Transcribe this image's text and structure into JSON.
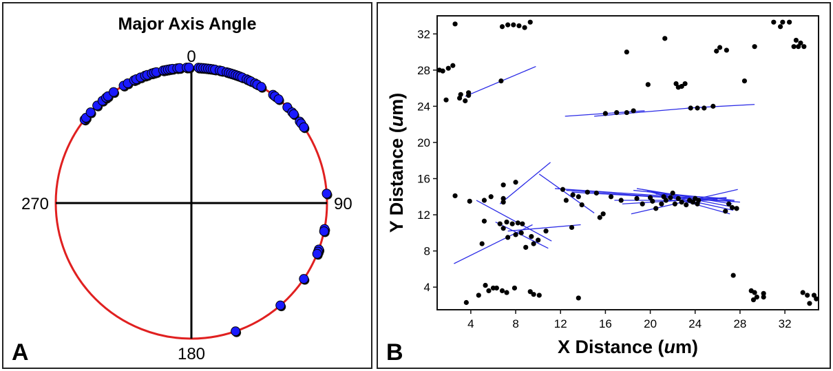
{
  "chart_data": [
    {
      "type": "scatter",
      "subtype": "polar-circle",
      "panel_label": "A",
      "title": "Major Axis Angle",
      "angle_labels": [
        "0",
        "90",
        "180",
        "270"
      ],
      "angles_deg": [
        -52,
        -51,
        -48,
        -44,
        -41,
        -39,
        -38,
        -35,
        -30,
        -28,
        -25,
        -24,
        -22,
        -20,
        -19,
        -17,
        -16,
        -15,
        -12,
        -11,
        -10,
        -9,
        -8,
        -6,
        -5,
        -2,
        -1,
        3,
        4,
        5,
        6,
        7,
        8,
        9,
        10,
        12,
        13,
        15,
        16,
        17,
        18,
        19,
        20,
        21,
        22,
        24,
        25,
        26,
        28,
        29,
        31,
        37,
        38,
        40,
        45,
        48,
        49,
        53,
        54,
        56,
        86,
        101,
        102,
        110,
        111,
        112,
        124,
        139,
        161
      ],
      "colors": {
        "circle": "#e02020",
        "points": "#1a1aff",
        "axes": "#000000"
      }
    },
    {
      "type": "scatter",
      "panel_label": "B",
      "xlabel": "X Distance (um)",
      "ylabel": "Y Distance (um)",
      "xlabel_parts": [
        "X Distance (",
        "u",
        "m)"
      ],
      "ylabel_parts": [
        "Y Distance (",
        "u",
        "m)"
      ],
      "xlim": [
        1,
        35
      ],
      "ylim": [
        1.5,
        34
      ],
      "xticks": [
        4,
        8,
        12,
        16,
        20,
        24,
        28,
        32
      ],
      "yticks": [
        4,
        8,
        12,
        16,
        20,
        24,
        28,
        32
      ],
      "points": [
        [
          1.2,
          28
        ],
        [
          1.5,
          27.9
        ],
        [
          2,
          28.2
        ],
        [
          2.4,
          28.5
        ],
        [
          2.6,
          33.1
        ],
        [
          1.8,
          24.7
        ],
        [
          3.1,
          25.3
        ],
        [
          3,
          24.9
        ],
        [
          3.5,
          24.6
        ],
        [
          3.8,
          25.2
        ],
        [
          3.8,
          25.5
        ],
        [
          6.7,
          26.8
        ],
        [
          6.8,
          32.8
        ],
        [
          7.3,
          33
        ],
        [
          7.8,
          33
        ],
        [
          8.3,
          32.9
        ],
        [
          8.8,
          32.7
        ],
        [
          9.3,
          33.3
        ],
        [
          17.9,
          30
        ],
        [
          21.3,
          31.5
        ],
        [
          19.8,
          26.4
        ],
        [
          22.3,
          26.5
        ],
        [
          22.5,
          26.1
        ],
        [
          22.8,
          26.2
        ],
        [
          23.1,
          26.5
        ],
        [
          25.9,
          30.1
        ],
        [
          26.2,
          30.5
        ],
        [
          26.8,
          30.2
        ],
        [
          28.4,
          26.8
        ],
        [
          29.3,
          30.6
        ],
        [
          31,
          33.3
        ],
        [
          31.6,
          32.8
        ],
        [
          31.8,
          33.3
        ],
        [
          32.4,
          33.3
        ],
        [
          32.8,
          30.6
        ],
        [
          33,
          31.3
        ],
        [
          33.2,
          30.6
        ],
        [
          33.4,
          31
        ],
        [
          33.7,
          30.6
        ],
        [
          16,
          23.2
        ],
        [
          17,
          23.3
        ],
        [
          17.9,
          23.3
        ],
        [
          18.5,
          23.5
        ],
        [
          23.6,
          23.8
        ],
        [
          24.2,
          23.8
        ],
        [
          24.8,
          23.8
        ],
        [
          25.6,
          24
        ],
        [
          2.6,
          14.1
        ],
        [
          3.9,
          13.5
        ],
        [
          5.2,
          13.6
        ],
        [
          5.8,
          14
        ],
        [
          6.9,
          15.3
        ],
        [
          6.9,
          13.8
        ],
        [
          6.9,
          13.4
        ],
        [
          8,
          15.6
        ],
        [
          5.2,
          11.3
        ],
        [
          6.6,
          11
        ],
        [
          7.2,
          11.2
        ],
        [
          7.7,
          11
        ],
        [
          8.2,
          11.1
        ],
        [
          8.6,
          11
        ],
        [
          5,
          8.8
        ],
        [
          6.9,
          10.5
        ],
        [
          7.3,
          9.5
        ],
        [
          8,
          9.8
        ],
        [
          8.5,
          10
        ],
        [
          8.9,
          8.4
        ],
        [
          9.4,
          9.6
        ],
        [
          9.6,
          8.8
        ],
        [
          10,
          9.2
        ],
        [
          10.7,
          10.2
        ],
        [
          13,
          10.6
        ],
        [
          12.2,
          14.8
        ],
        [
          12.5,
          13.6
        ],
        [
          13.1,
          14.2
        ],
        [
          13.6,
          14
        ],
        [
          13.9,
          13.1
        ],
        [
          14.4,
          14.5
        ],
        [
          15.2,
          14.4
        ],
        [
          15.8,
          12.1
        ],
        [
          15.5,
          11.7
        ],
        [
          16.5,
          14
        ],
        [
          17.4,
          13.6
        ],
        [
          18.8,
          13.8
        ],
        [
          19.3,
          13.2
        ],
        [
          20,
          13.9
        ],
        [
          20.2,
          13.5
        ],
        [
          20.5,
          12.7
        ],
        [
          21,
          13.2
        ],
        [
          21.2,
          14
        ],
        [
          21.4,
          13.6
        ],
        [
          21.8,
          13.9
        ],
        [
          22,
          14.4
        ],
        [
          22.2,
          13.2
        ],
        [
          22.5,
          13.8
        ],
        [
          22.8,
          13.4
        ],
        [
          23.2,
          13.1
        ],
        [
          23.5,
          13.6
        ],
        [
          23.8,
          13.4
        ],
        [
          24,
          13.8
        ],
        [
          24.2,
          13.2
        ],
        [
          24.3,
          13.6
        ],
        [
          26.7,
          12.4
        ],
        [
          27,
          13.2
        ],
        [
          27.3,
          12.8
        ],
        [
          27.7,
          12.7
        ],
        [
          3.6,
          2.3
        ],
        [
          4.7,
          3.1
        ],
        [
          5.3,
          4.2
        ],
        [
          5.6,
          3.6
        ],
        [
          6,
          3.9
        ],
        [
          6.3,
          3.9
        ],
        [
          6.8,
          3.6
        ],
        [
          7.2,
          3.4
        ],
        [
          7.9,
          3.9
        ],
        [
          9.3,
          3.5
        ],
        [
          9.6,
          3.2
        ],
        [
          10.1,
          3.1
        ],
        [
          13.6,
          2.8
        ],
        [
          27.4,
          5.3
        ],
        [
          29,
          3.6
        ],
        [
          29.2,
          2.6
        ],
        [
          29.5,
          2.9
        ],
        [
          29.3,
          3.4
        ],
        [
          30.1,
          3.3
        ],
        [
          30.1,
          2.9
        ],
        [
          33.6,
          3.4
        ],
        [
          34,
          3.1
        ],
        [
          34.2,
          2.2
        ],
        [
          34.6,
          3.1
        ],
        [
          34.8,
          2.7
        ]
      ],
      "segments": [
        [
          3.5,
          25.1,
          9.8,
          28.4
        ],
        [
          12.4,
          22.9,
          19.5,
          23.5
        ],
        [
          15,
          22.9,
          23.5,
          23.8
        ],
        [
          23.3,
          23.8,
          29.3,
          24.2
        ],
        [
          2.5,
          6.6,
          9.5,
          10.9
        ],
        [
          6.6,
          13.2,
          11.1,
          17.8
        ],
        [
          4.5,
          13.6,
          11.2,
          9.1
        ],
        [
          6.2,
          11.2,
          10.9,
          8.3
        ],
        [
          7.3,
          10.2,
          13.8,
          10.9
        ],
        [
          10.1,
          16.5,
          15,
          12.2
        ],
        [
          11.5,
          14.9,
          26,
          13.7
        ],
        [
          12.5,
          14.7,
          28,
          13.4
        ],
        [
          13,
          14.5,
          27.5,
          13.5
        ],
        [
          18.5,
          14.7,
          27.5,
          13.6
        ],
        [
          18.8,
          14.9,
          27.3,
          13.2
        ],
        [
          19.3,
          14.8,
          27.6,
          12.8
        ],
        [
          19.7,
          14.6,
          27.4,
          12.5
        ],
        [
          20.1,
          14.5,
          27.1,
          12.1
        ],
        [
          16.8,
          13.6,
          27.2,
          13.6
        ],
        [
          17.5,
          13.2,
          26.8,
          13.9
        ],
        [
          18.3,
          12.1,
          27.8,
          14.8
        ],
        [
          20.5,
          14.3,
          26.8,
          13.8
        ]
      ],
      "colors": {
        "points": "#000000",
        "segments": "#2a2ae6"
      }
    }
  ]
}
